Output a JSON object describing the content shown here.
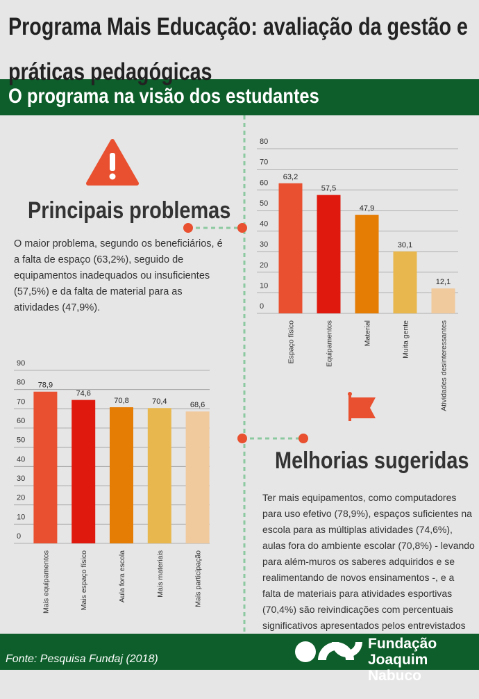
{
  "header": {
    "title": "Programa Mais Educação: avaliação da gestão e práticas pedagógicas",
    "subtitle": "O programa na visão dos estudantes"
  },
  "problems": {
    "title": "Principais problemas",
    "text": "O maior problema, segundo os beneficiários, é a falta de espaço (63,2%), seguido de equipamentos inadequados ou insuficientes (57,5%) e da falta de material para as atividades (47,9%)."
  },
  "improvements": {
    "title": "Melhorias sugeridas",
    "text": "Ter mais equipamentos, como computadores para uso efetivo (78,9%), espaços suficientes na escola para as múltiplas atividades (74,6%), aulas fora do ambiente escolar (70,8%) - levando para além-muros os saberes adquiridos e se realimentando de novos ensinamentos -, e a falta de materiais para atividades esportivas (70,4%) são reivindicações com percentuais significativos apresentados pelos entrevistados"
  },
  "footer": {
    "source": "Fonte: Pesquisa Fundaj (2018)",
    "logo_line1": "Fundação",
    "logo_line2": "Joaquim Nabuco"
  },
  "chart_data": [
    {
      "type": "bar",
      "categories": [
        "Espaço físico",
        "Equipamentos",
        "Material",
        "Muita gente",
        "Atividades desinteressantes"
      ],
      "values": [
        63.2,
        57.5,
        47.9,
        30.1,
        12.1
      ],
      "value_labels": [
        "63,2",
        "57,5",
        "47,9",
        "30,1",
        "12,1"
      ],
      "colors": [
        "#e8502f",
        "#e0190e",
        "#e57c04",
        "#e8b84e",
        "#f0c99c"
      ],
      "ylim": [
        0,
        80
      ],
      "yticks": [
        0,
        10,
        20,
        30,
        40,
        50,
        60,
        70,
        80
      ],
      "grid": true
    },
    {
      "type": "bar",
      "categories": [
        "Mais equipamentos",
        "Mais espaço físico",
        "Aula fora escola",
        "Mais materiais",
        "Mais participação"
      ],
      "values": [
        78.9,
        74.6,
        70.8,
        70.4,
        68.6
      ],
      "value_labels": [
        "78,9",
        "74,6",
        "70,8",
        "70,4",
        "68,6"
      ],
      "colors": [
        "#e8502f",
        "#e0190e",
        "#e57c04",
        "#e8b84e",
        "#f0c99c"
      ],
      "ylim": [
        0,
        90
      ],
      "yticks": [
        0,
        10,
        20,
        30,
        40,
        50,
        60,
        70,
        80,
        90
      ],
      "grid": true
    }
  ]
}
